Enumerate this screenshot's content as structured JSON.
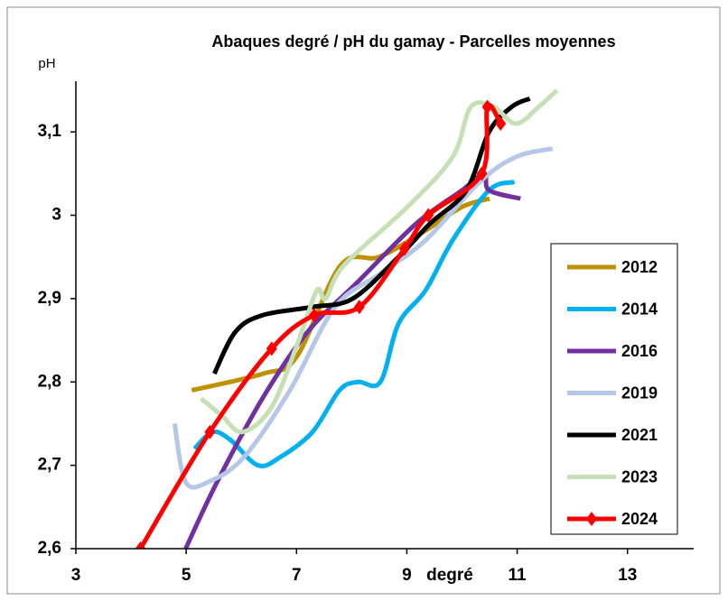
{
  "chart_data": {
    "type": "line",
    "title": "Abaques degré / pH   du gamay - Parcelles moyennes",
    "y_label": "pH",
    "x_label": "degré",
    "xlim": [
      3,
      14.2
    ],
    "xticks": [
      3,
      5,
      7,
      9,
      11,
      13
    ],
    "ylim": [
      2.6,
      3.15
    ],
    "yticks": [
      {
        "value": 2.6,
        "label": "2,6"
      },
      {
        "value": 2.7,
        "label": "2,7"
      },
      {
        "value": 2.8,
        "label": "2,8"
      },
      {
        "value": 2.9,
        "label": "2,9"
      },
      3,
      {
        "value": 3.1,
        "label": "3,1"
      }
    ],
    "legend": "right",
    "series": [
      {
        "name": "2012",
        "color": "#bf9000",
        "x": [
          5.1,
          6.4,
          7.0,
          7.8,
          8.5,
          9.3,
          10.0,
          10.5
        ],
        "values": [
          2.79,
          2.81,
          2.83,
          2.94,
          2.95,
          2.98,
          3.01,
          3.02
        ]
      },
      {
        "name": "2014",
        "color": "#00b0f0",
        "x": [
          5.15,
          5.48,
          5.81,
          6.3,
          6.71,
          7.29,
          7.78,
          8.11,
          8.52,
          8.85,
          9.34,
          9.83,
          10.49,
          10.95
        ],
        "values": [
          2.72,
          2.74,
          2.73,
          2.7,
          2.71,
          2.74,
          2.79,
          2.8,
          2.8,
          2.87,
          2.91,
          2.97,
          3.03,
          3.04
        ]
      },
      {
        "name": "2016",
        "color": "#7030a0",
        "x": [
          4.99,
          5.56,
          6.38,
          7.2,
          8.11,
          9.17,
          10.0,
          10.4,
          10.49,
          11.06
        ],
        "values": [
          2.6,
          2.68,
          2.78,
          2.86,
          2.92,
          2.99,
          3.03,
          3.05,
          3.03,
          3.02
        ]
      },
      {
        "name": "2019",
        "color": "#b4c7e7",
        "x": [
          4.79,
          4.99,
          5.4,
          6.05,
          6.88,
          7.7,
          8.52,
          9.34,
          10.32,
          10.98,
          11.64
        ],
        "values": [
          2.75,
          2.68,
          2.68,
          2.71,
          2.79,
          2.89,
          2.93,
          2.97,
          3.04,
          3.07,
          3.08
        ]
      },
      {
        "name": "2021",
        "color": "#000000",
        "x": [
          5.51,
          5.89,
          6.38,
          7.29,
          8.02,
          8.85,
          9.42,
          10.08,
          10.49,
          10.9,
          11.23
        ],
        "values": [
          2.81,
          2.86,
          2.88,
          2.89,
          2.9,
          2.95,
          2.99,
          3.03,
          3.1,
          3.13,
          3.14
        ]
      },
      {
        "name": "2023",
        "color": "#c5e0b4",
        "x": [
          5.27,
          5.64,
          6.02,
          6.55,
          7.04,
          7.37,
          7.53,
          7.86,
          9.01,
          9.83,
          10.16,
          10.57,
          10.98,
          11.39,
          11.72
        ],
        "values": [
          2.78,
          2.76,
          2.74,
          2.77,
          2.85,
          2.91,
          2.9,
          2.94,
          3.01,
          3.07,
          3.13,
          3.13,
          3.11,
          3.13,
          3.15
        ]
      },
      {
        "name": "2024",
        "color": "#ff0000",
        "marker": "diamond",
        "x": [
          4.17,
          5.43,
          6.55,
          7.32,
          8.14,
          8.96,
          9.39,
          10.36,
          10.46,
          10.7
        ],
        "values": [
          2.6,
          2.74,
          2.84,
          2.88,
          2.89,
          2.96,
          3.0,
          3.05,
          3.13,
          3.11
        ]
      }
    ]
  }
}
